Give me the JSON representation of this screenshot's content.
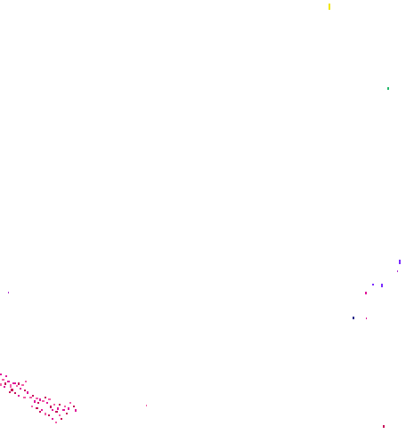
{
  "colors": {
    "background": "#ffffff",
    "yellow": "#f2e600",
    "green": "#22b86a",
    "violet": "#7a2cff",
    "magenta": "#e0189a",
    "purple": "#b030d0",
    "navy": "#2a2a8a",
    "pink": "#f25fa8",
    "crimson": "#c8105a"
  }
}
